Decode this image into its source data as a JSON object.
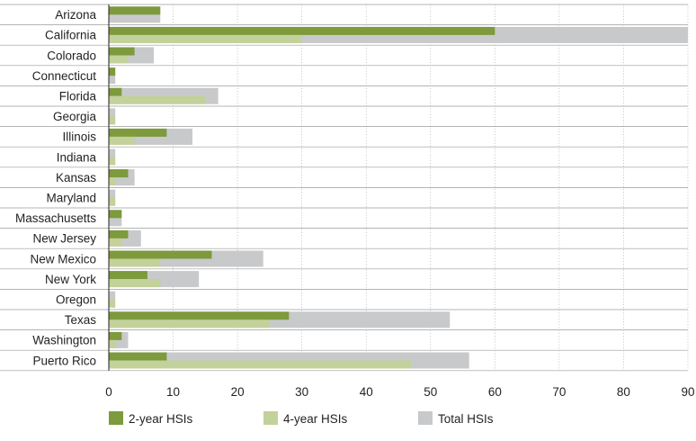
{
  "chart_data": {
    "type": "bar",
    "orientation": "horizontal",
    "title": "",
    "xlabel": "",
    "ylabel": "",
    "categories": [
      "Arizona",
      "California",
      "Colorado",
      "Connecticut",
      "Florida",
      "Georgia",
      "Illinois",
      "Indiana",
      "Kansas",
      "Maryland",
      "Massachusetts",
      "New Jersey",
      "New Mexico",
      "New York",
      "Oregon",
      "Texas",
      "Washington",
      "Puerto Rico"
    ],
    "series": [
      {
        "name": "Total HSIs",
        "color": "#c8c9cb",
        "values": [
          8,
          90,
          7,
          1,
          17,
          1,
          13,
          1,
          4,
          1,
          2,
          5,
          24,
          14,
          1,
          53,
          3,
          56
        ]
      },
      {
        "name": "2-year HSIs",
        "color": "#7d9a3c",
        "values": [
          8,
          60,
          4,
          1,
          2,
          0,
          9,
          0,
          3,
          0,
          2,
          3,
          16,
          6,
          0,
          28,
          2,
          9
        ]
      },
      {
        "name": "4-year HSIs",
        "color": "#c3d19a",
        "values": [
          0,
          30,
          3,
          0,
          15,
          1,
          4,
          1,
          1,
          1,
          0,
          2,
          8,
          8,
          1,
          25,
          1,
          47
        ]
      }
    ],
    "xlim": [
      0,
      90
    ],
    "xticks": [
      0,
      10,
      20,
      30,
      40,
      50,
      60,
      70,
      80,
      90
    ],
    "grid": "vertical-dotted",
    "legend": {
      "position": "bottom",
      "items": [
        {
          "label": "2-year HSIs",
          "color": "#7d9a3c"
        },
        {
          "label": "4-year HSIs",
          "color": "#c3d19a"
        },
        {
          "label": "Total HSIs",
          "color": "#c8c9cb"
        }
      ]
    }
  }
}
